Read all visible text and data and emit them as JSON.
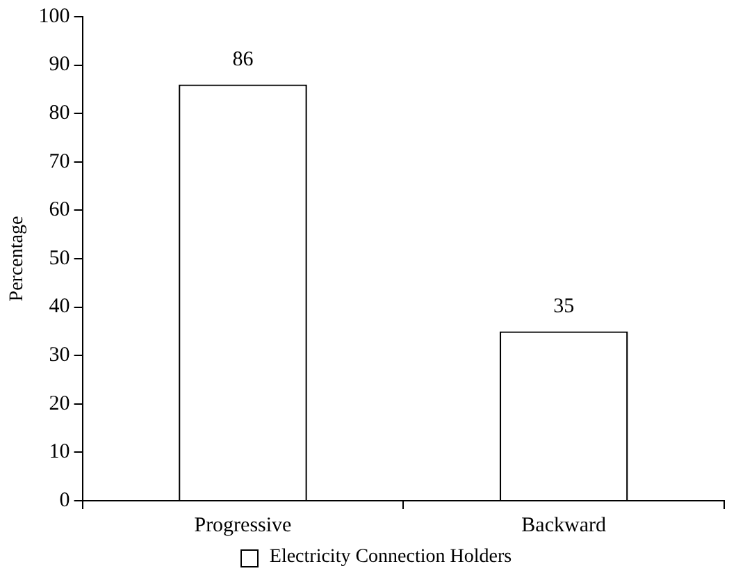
{
  "chart_data": {
    "type": "bar",
    "ylabel": "Percentage",
    "categories": [
      "Progressive",
      "Backward"
    ],
    "series": [
      {
        "name": "Electricity Connection Holders",
        "color": "#ffffff",
        "values": [
          86,
          35
        ]
      }
    ],
    "ylim": [
      0,
      100
    ],
    "yticks": [
      0,
      10,
      20,
      30,
      40,
      50,
      60,
      70,
      80,
      90,
      100
    ],
    "grid": false,
    "legend": "bottom",
    "data_labels": true
  }
}
